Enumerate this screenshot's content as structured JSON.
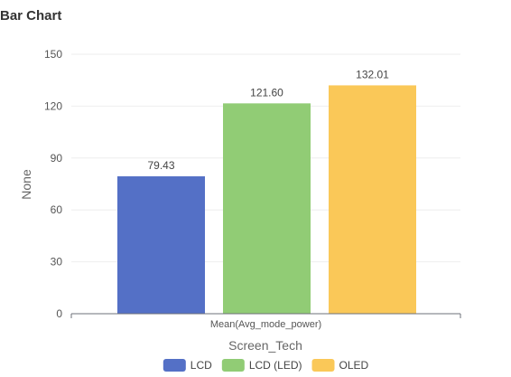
{
  "title": "Bar Chart",
  "chart_data": {
    "type": "bar",
    "categories": [
      "Mean(Avg_mode_power)"
    ],
    "series": [
      {
        "name": "LCD",
        "values": [
          79.43
        ],
        "color": "#5470c6",
        "label": "79.43"
      },
      {
        "name": "LCD (LED)",
        "values": [
          121.6
        ],
        "color": "#91cc75",
        "label": "121.60"
      },
      {
        "name": "OLED",
        "values": [
          132.01
        ],
        "color": "#fac858",
        "label": "132.01"
      }
    ],
    "xlabel": "Screen_Tech",
    "ylabel": "None",
    "ylim": [
      0,
      150
    ],
    "yticks": [
      "0",
      "30",
      "60",
      "90",
      "120",
      "150"
    ],
    "grid": true,
    "legend": "bottom-center"
  }
}
